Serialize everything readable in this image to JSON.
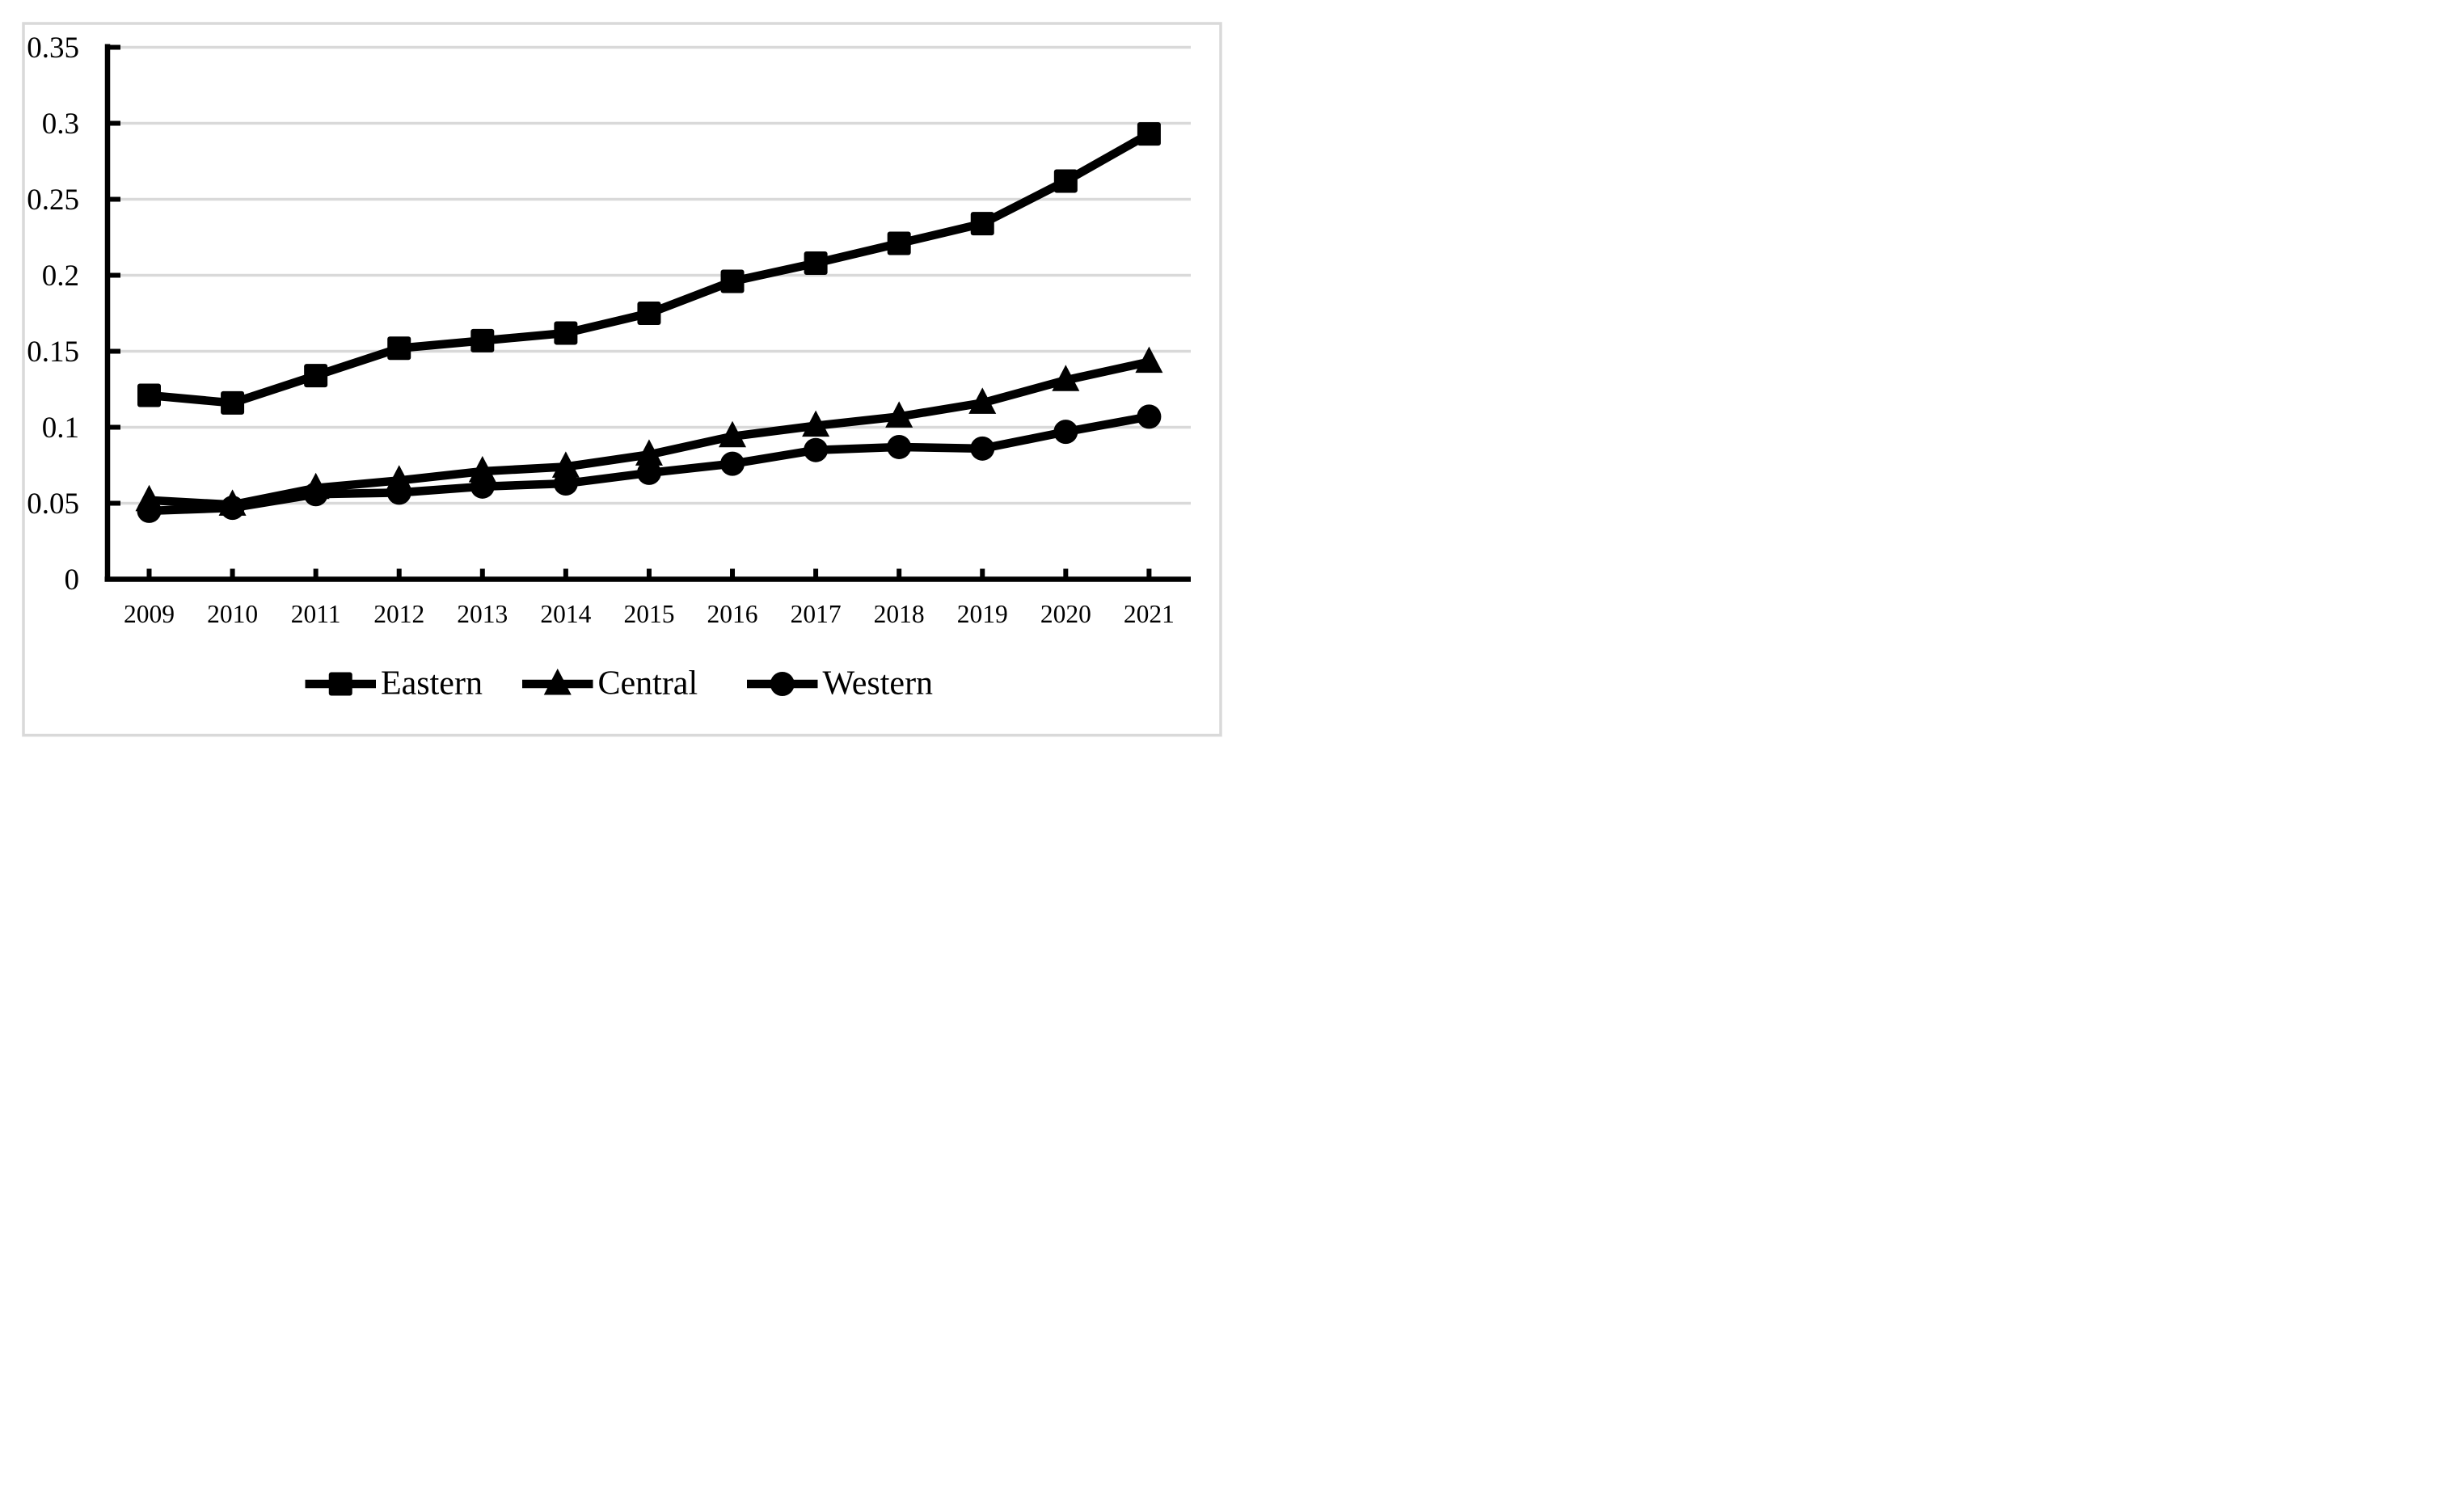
{
  "figure": {
    "background_color": "#ffffff",
    "frame_color": "#d9d9d9"
  },
  "chart_data": {
    "type": "line",
    "title": "",
    "categories": [
      "2009",
      "2010",
      "2011",
      "2012",
      "2013",
      "2014",
      "2015",
      "2016",
      "2017",
      "2018",
      "2019",
      "2020",
      "2021"
    ],
    "series": [
      {
        "name": "Eastern",
        "marker": "square",
        "color": "#000000",
        "values": [
          0.121,
          0.116,
          0.134,
          0.152,
          0.157,
          0.162,
          0.175,
          0.196,
          0.208,
          0.221,
          0.234,
          0.262,
          0.293
        ]
      },
      {
        "name": "Central",
        "marker": "triangle",
        "color": "#000000",
        "values": [
          0.052,
          0.049,
          0.06,
          0.065,
          0.071,
          0.074,
          0.082,
          0.094,
          0.101,
          0.107,
          0.116,
          0.131,
          0.143
        ]
      },
      {
        "name": "Western",
        "marker": "circle",
        "color": "#000000",
        "values": [
          0.045,
          0.047,
          0.056,
          0.057,
          0.061,
          0.063,
          0.07,
          0.076,
          0.085,
          0.087,
          0.086,
          0.097,
          0.107
        ]
      }
    ],
    "xlabel": "",
    "ylabel": "",
    "ylim": [
      0,
      0.35
    ],
    "y_tick_step": 0.05,
    "y_tick_labels": [
      "0",
      "0.05",
      "0.1",
      "0.15",
      "0.2",
      "0.25",
      "0.3",
      "0.35"
    ],
    "grid": "horizontal gridlines on",
    "gridline_color": "#d9d9d9",
    "axis_color": "#000000",
    "legend_position": "bottom",
    "legend_labels": [
      "Eastern",
      "Central",
      "Western"
    ]
  }
}
